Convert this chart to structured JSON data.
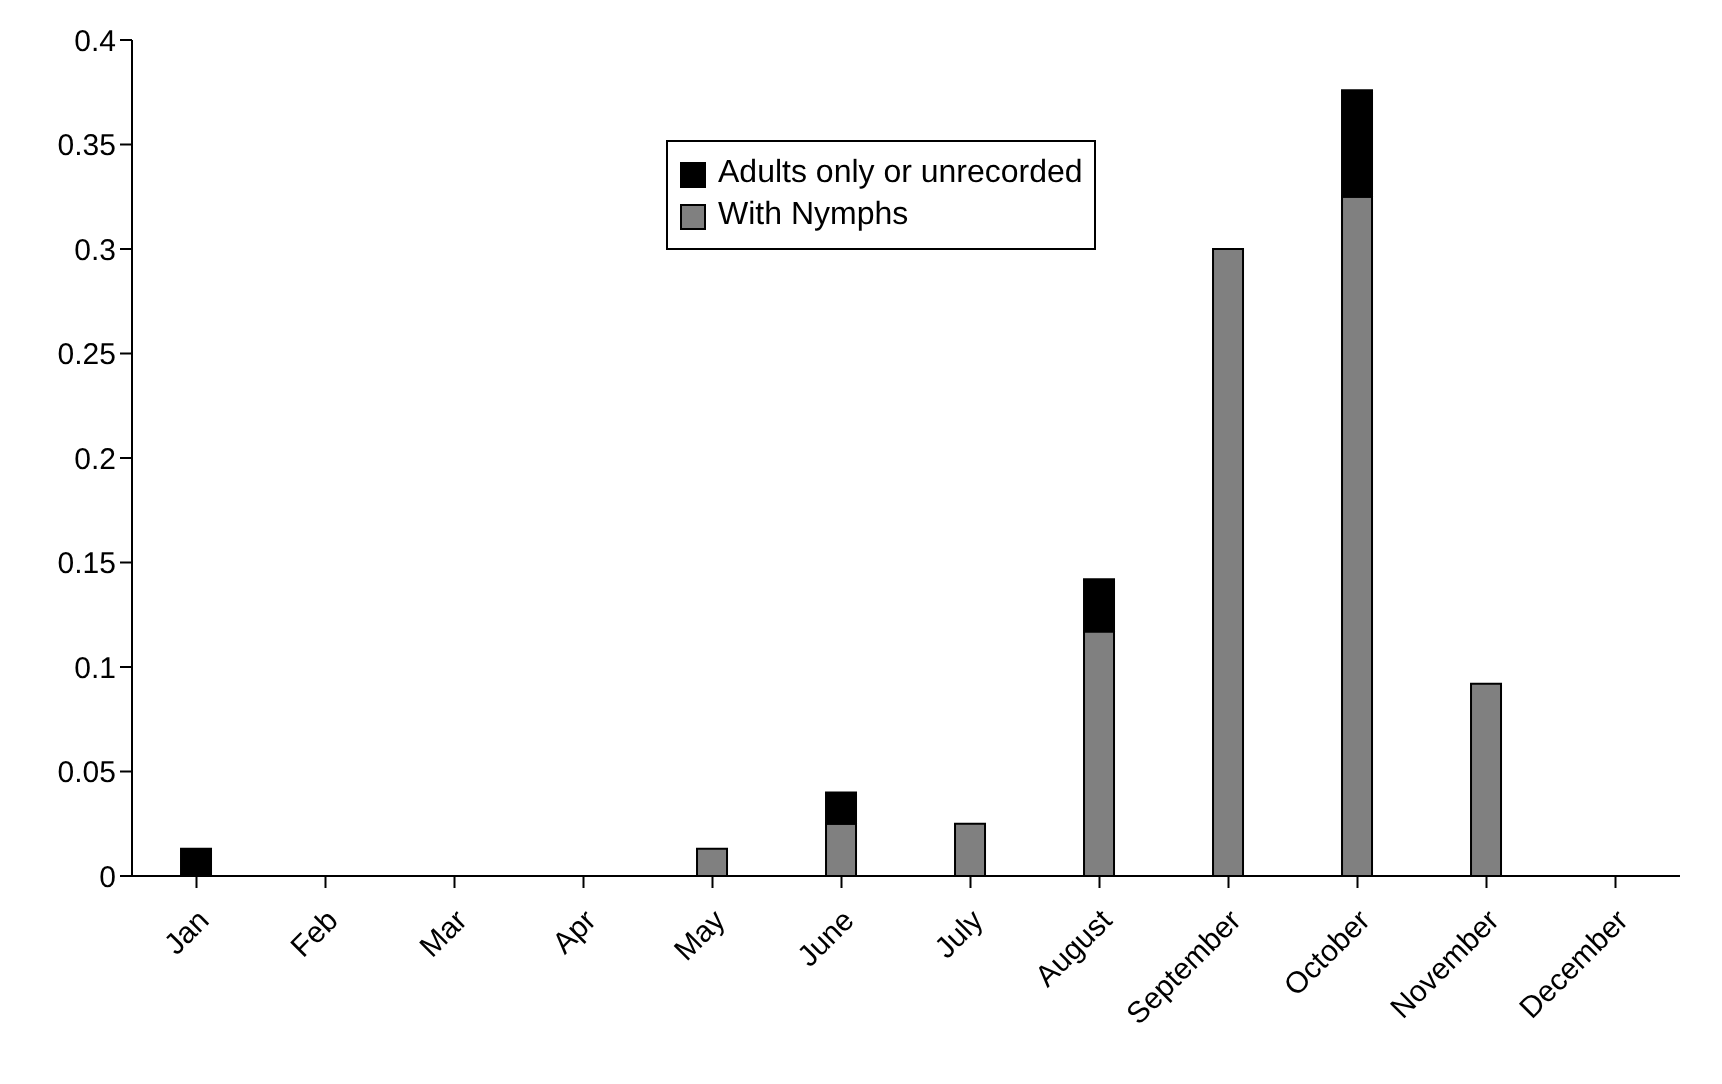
{
  "chart_data": {
    "type": "bar",
    "stacked": true,
    "categories": [
      "Jan",
      "Feb",
      "Mar",
      "Apr",
      "May",
      "June",
      "July",
      "August",
      "September",
      "October",
      "November",
      "December"
    ],
    "series": [
      {
        "name": "With Nymphs",
        "color": "#808080",
        "values": [
          0,
          0,
          0,
          0,
          0.013,
          0.025,
          0.025,
          0.117,
          0.3,
          0.325,
          0.092,
          0
        ]
      },
      {
        "name": "Adults only or unrecorded",
        "color": "#000000",
        "values": [
          0.013,
          0,
          0,
          0,
          0,
          0.015,
          0,
          0.025,
          0,
          0.051,
          0,
          0
        ]
      }
    ],
    "ylim": [
      0,
      0.4
    ],
    "yticks": [
      0,
      0.05,
      0.1,
      0.15,
      0.2,
      0.25,
      0.3,
      0.35,
      0.4
    ],
    "grid": false,
    "legend": "top"
  }
}
